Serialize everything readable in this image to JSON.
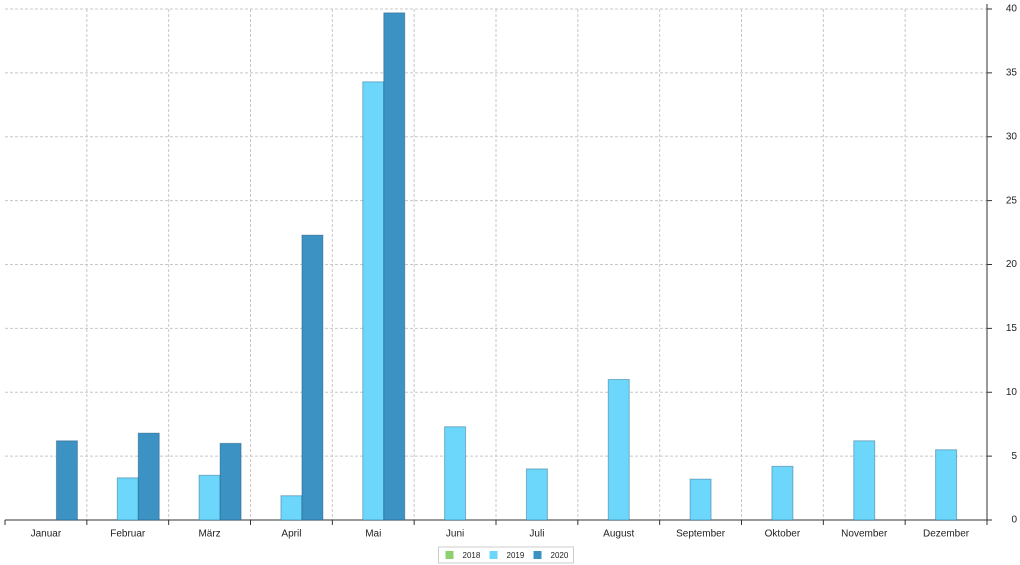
{
  "chart_data": {
    "type": "bar",
    "categories": [
      "Januar",
      "Februar",
      "März",
      "April",
      "Mai",
      "Juni",
      "Juli",
      "August",
      "September",
      "Oktober",
      "November",
      "Dezember"
    ],
    "series": [
      {
        "name": "2018",
        "color": "#8dd16e",
        "values": [
          null,
          null,
          null,
          null,
          null,
          null,
          null,
          null,
          null,
          null,
          null,
          null
        ]
      },
      {
        "name": "2019",
        "color": "#6dd7fb",
        "values": [
          null,
          3.3,
          3.5,
          1.9,
          34.3,
          7.3,
          4.0,
          11.0,
          3.2,
          4.2,
          6.2,
          5.5
        ]
      },
      {
        "name": "2020",
        "color": "#3d92c4",
        "values": [
          6.2,
          6.8,
          6.0,
          22.3,
          39.7,
          null,
          null,
          null,
          null,
          null,
          null,
          null
        ]
      }
    ],
    "ylim": [
      0,
      40
    ],
    "yticks": [
      0,
      5,
      10,
      15,
      20,
      25,
      30,
      35,
      40
    ],
    "grid": true,
    "legend": "bottom"
  }
}
